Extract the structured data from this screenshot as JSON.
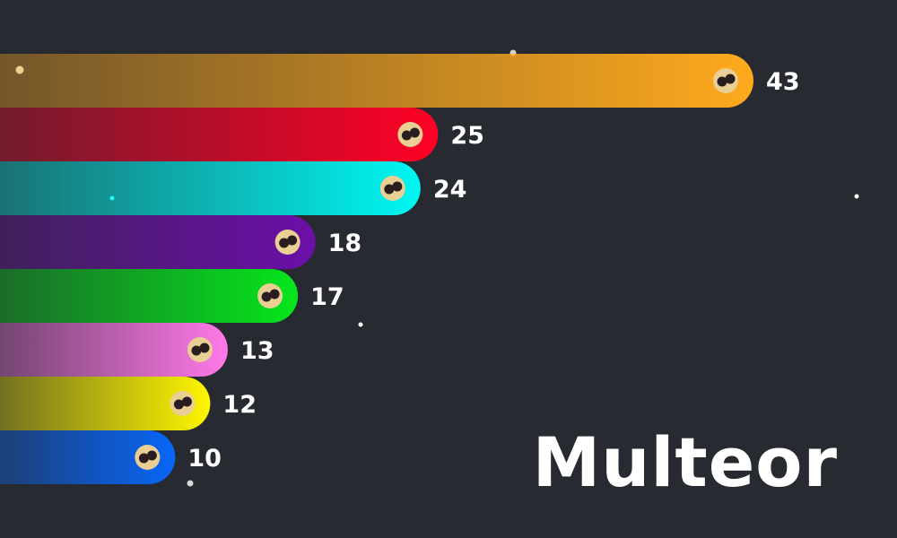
{
  "brand": {
    "name": "Multeor"
  },
  "background_color": "#272a31",
  "chart_data": {
    "type": "bar",
    "orientation": "horizontal",
    "categories": [
      "",
      "",
      "",
      "",
      "",
      "",
      "",
      ""
    ],
    "values": [
      43,
      25,
      24,
      18,
      17,
      13,
      12,
      10
    ],
    "colors": [
      "#ffaa1d",
      "#ff0026",
      "#00f7f3",
      "#6c0fa8",
      "#05e61c",
      "#ff79e8",
      "#fff600",
      "#0866f9"
    ],
    "value_labels": [
      "43",
      "25",
      "24",
      "18",
      "17",
      "13",
      "12",
      "10"
    ],
    "bar_icon": "player-avatar-icon",
    "title": "",
    "xlabel": "",
    "ylabel": "",
    "grid": false,
    "legend": "none"
  },
  "decorations": {
    "particles": "meteor-dot-icon"
  }
}
